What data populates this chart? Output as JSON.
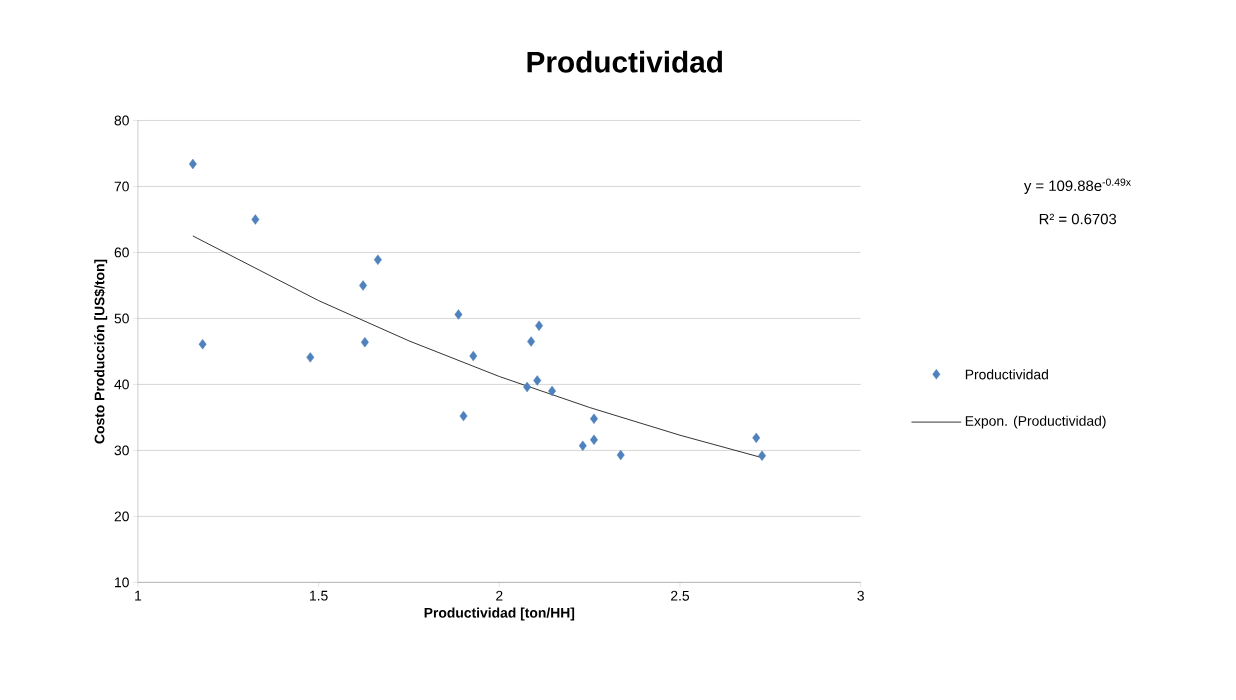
{
  "chart_data": {
    "type": "scatter",
    "title": "Productividad",
    "xlabel": "Productividad [ton/HH]",
    "ylabel": "Costo Producción [US$/ton]",
    "xlim": [
      1,
      3
    ],
    "xticks": [
      1,
      1.5,
      2,
      2.5,
      3
    ],
    "ylim": [
      10,
      80
    ],
    "yticks": [
      10,
      20,
      30,
      40,
      50,
      60,
      70,
      80
    ],
    "grid": "y",
    "legend": "right",
    "marker": "diamond",
    "annotations": [
      "y = 109.88e$^{-0.49x}$",
      "R² = 0.6703"
    ],
    "series": [
      {
        "name": "Productividad",
        "color": "#4f81bd",
        "x": [
          1.152,
          1.179,
          1.325,
          1.477,
          1.623,
          1.628,
          1.664,
          1.887,
          1.901,
          1.928,
          2.088,
          2.11,
          2.077,
          2.105,
          2.146,
          2.262,
          2.231,
          2.262,
          2.336,
          2.711,
          2.727
        ],
        "values": [
          73.4,
          46.1,
          65.0,
          44.1,
          55.0,
          46.4,
          58.9,
          50.6,
          35.2,
          44.3,
          46.5,
          48.9,
          39.6,
          40.6,
          39.0,
          34.8,
          30.7,
          31.6,
          29.3,
          31.9,
          29.2
        ]
      },
      {
        "name": "Expon. (Productividad)",
        "type": "line",
        "marker": "none",
        "color": "#000000",
        "x": [
          1.152,
          1.5,
          1.75,
          2,
          2.25,
          2.5,
          2.727
        ],
        "values": [
          62.5,
          52.7,
          46.6,
          41.2,
          36.5,
          32.3,
          28.9
        ]
      }
    ]
  }
}
